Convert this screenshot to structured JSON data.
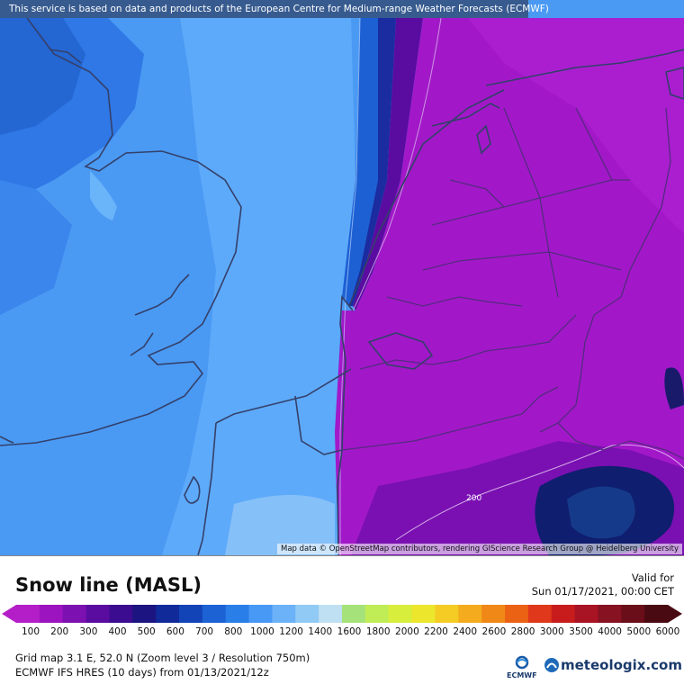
{
  "header": {
    "notice": "This service is based on data and products of the European Centre for Medium-range Weather Forecasts (ECMWF)"
  },
  "map": {
    "attribution": "Map data © OpenStreetMap contributors, rendering GIScience Research Group @ Heidelberg University",
    "contour_label": "200",
    "colors": {
      "deep_blue": "#1d5fd6",
      "mid_blue": "#3b8ef0",
      "light_blue": "#5fa8f8",
      "magenta": "#a218c8",
      "deep_purple": "#6a0aa0",
      "navy": "#0f1e6e",
      "border_line": "#34406a"
    }
  },
  "legend": {
    "title": "Snow line (MASL)",
    "valid_label": "Valid for",
    "valid_date": "Sun 01/17/2021, 00:00 CET",
    "ticks": [
      "100",
      "200",
      "300",
      "400",
      "500",
      "600",
      "700",
      "800",
      "1000",
      "1200",
      "1400",
      "1600",
      "1800",
      "2000",
      "2200",
      "2400",
      "2600",
      "2800",
      "3000",
      "3500",
      "4000",
      "5000",
      "6000"
    ],
    "colors": [
      "#b41ec8",
      "#9c14c0",
      "#7c10b0",
      "#5a0ca0",
      "#3c0c90",
      "#1c1480",
      "#102a9a",
      "#1244b8",
      "#1c62d4",
      "#2a7ee8",
      "#4898f6",
      "#6cb2f8",
      "#92caf6",
      "#bfe0f2",
      "#a6e27a",
      "#c0ec56",
      "#d8ee3c",
      "#ece62c",
      "#f4cc24",
      "#f4ac1e",
      "#f08818",
      "#ec6214",
      "#e0381a",
      "#c81c1c",
      "#a81424",
      "#861222",
      "#6a0e1a",
      "#4a0a12"
    ],
    "info_line1": "Grid map 3.1 E, 52.0 N (Zoom level 3 / Resolution 750m)",
    "info_line2": "ECMWF IFS HRES (10 days) from 01/13/2021/12z",
    "brand_ecmwf": "ECMWF",
    "brand_meteologix": "meteologix.com"
  }
}
